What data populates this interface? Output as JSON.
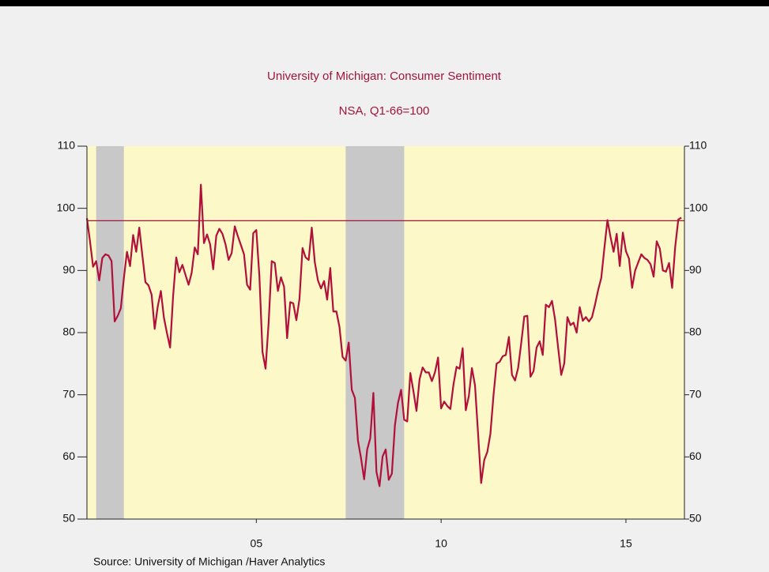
{
  "chart_data": {
    "type": "line",
    "title": "University of Michigan: Consumer Sentiment",
    "subtitle": "NSA, Q1-66=100",
    "source": "Source:  University of Michigan /Haver Analytics",
    "x": [
      2000.917,
      2001.0,
      2001.083,
      2001.167,
      2001.25,
      2001.333,
      2001.417,
      2001.5,
      2001.583,
      2001.667,
      2001.75,
      2001.833,
      2001.917,
      2002.0,
      2002.083,
      2002.167,
      2002.25,
      2002.333,
      2002.417,
      2002.5,
      2002.583,
      2002.667,
      2002.75,
      2002.833,
      2002.917,
      2003.0,
      2003.083,
      2003.167,
      2003.25,
      2003.333,
      2003.417,
      2003.5,
      2003.583,
      2003.667,
      2003.75,
      2003.833,
      2003.917,
      2004.0,
      2004.083,
      2004.167,
      2004.25,
      2004.333,
      2004.417,
      2004.5,
      2004.583,
      2004.667,
      2004.75,
      2004.833,
      2004.917,
      2005.0,
      2005.083,
      2005.167,
      2005.25,
      2005.333,
      2005.417,
      2005.5,
      2005.583,
      2005.667,
      2005.75,
      2005.833,
      2005.917,
      2006.0,
      2006.083,
      2006.167,
      2006.25,
      2006.333,
      2006.417,
      2006.5,
      2006.583,
      2006.667,
      2006.75,
      2006.833,
      2006.917,
      2007.0,
      2007.083,
      2007.167,
      2007.25,
      2007.333,
      2007.417,
      2007.5,
      2007.583,
      2007.667,
      2007.75,
      2007.833,
      2007.917,
      2008.0,
      2008.083,
      2008.167,
      2008.25,
      2008.333,
      2008.417,
      2008.5,
      2008.583,
      2008.667,
      2008.75,
      2008.833,
      2008.917,
      2009.0,
      2009.083,
      2009.167,
      2009.25,
      2009.333,
      2009.417,
      2009.5,
      2009.583,
      2009.667,
      2009.75,
      2009.833,
      2009.917,
      2010.0,
      2010.083,
      2010.167,
      2010.25,
      2010.333,
      2010.417,
      2010.5,
      2010.583,
      2010.667,
      2010.75,
      2010.833,
      2010.917,
      2011.0,
      2011.083,
      2011.167,
      2011.25,
      2011.333,
      2011.417,
      2011.5,
      2011.583,
      2011.667,
      2011.75,
      2011.833,
      2011.917,
      2012.0,
      2012.083,
      2012.167,
      2012.25,
      2012.333,
      2012.417,
      2012.5,
      2012.583,
      2012.667,
      2012.75,
      2012.833,
      2012.917,
      2013.0,
      2013.083,
      2013.167,
      2013.25,
      2013.333,
      2013.417,
      2013.5,
      2013.583,
      2013.667,
      2013.75,
      2013.833,
      2013.917,
      2014.0,
      2014.083,
      2014.167,
      2014.25,
      2014.333,
      2014.417,
      2014.5,
      2014.583,
      2014.667,
      2014.75,
      2014.833,
      2014.917,
      2015.0,
      2015.083,
      2015.167,
      2015.25,
      2015.333,
      2015.417,
      2015.5,
      2015.583,
      2015.667,
      2015.75,
      2015.833,
      2015.917,
      2016.0,
      2016.083,
      2016.167,
      2016.25,
      2016.333,
      2016.417,
      2016.5,
      2016.583,
      2016.667,
      2016.75,
      2016.833,
      2016.917,
      2017.0
    ],
    "series": [
      {
        "color": "#b0103a",
        "values": [
          98.4,
          94.7,
          90.6,
          91.5,
          88.4,
          92.0,
          92.6,
          92.4,
          91.5,
          81.8,
          82.7,
          83.9,
          88.8,
          93.0,
          90.7,
          95.7,
          93.0,
          96.9,
          92.4,
          88.1,
          87.6,
          86.1,
          80.6,
          84.2,
          86.7,
          82.4,
          79.9,
          77.6,
          86.0,
          92.1,
          89.7,
          90.9,
          89.3,
          87.7,
          89.6,
          93.7,
          92.6,
          103.8,
          94.4,
          95.8,
          94.2,
          90.2,
          95.6,
          96.7,
          95.9,
          94.2,
          91.7,
          92.8,
          97.1,
          95.5,
          94.1,
          92.6,
          87.7,
          86.9,
          96.0,
          96.5,
          89.1,
          76.9,
          74.2,
          81.6,
          91.5,
          91.2,
          86.7,
          88.9,
          87.4,
          79.1,
          84.9,
          84.7,
          82.0,
          85.4,
          93.6,
          92.1,
          91.7,
          96.9,
          91.3,
          88.4,
          87.1,
          88.3,
          85.3,
          90.4,
          83.4,
          83.4,
          80.9,
          76.1,
          75.5,
          78.4,
          70.8,
          69.5,
          62.6,
          59.8,
          56.4,
          61.2,
          63.0,
          70.3,
          57.6,
          55.3,
          60.1,
          61.2,
          56.3,
          57.3,
          65.1,
          68.7,
          70.8,
          66.0,
          65.7,
          73.5,
          70.6,
          67.4,
          72.5,
          74.4,
          73.6,
          73.6,
          72.2,
          73.6,
          76.0,
          67.8,
          68.9,
          68.2,
          67.7,
          71.6,
          74.5,
          74.2,
          77.5,
          67.5,
          69.8,
          74.3,
          71.5,
          63.7,
          55.8,
          59.5,
          60.8,
          63.7,
          69.9,
          75.0,
          75.3,
          76.2,
          76.4,
          79.3,
          73.2,
          72.3,
          74.3,
          78.3,
          82.6,
          82.7,
          72.9,
          73.8,
          77.6,
          78.6,
          76.4,
          84.5,
          84.1,
          85.1,
          82.1,
          77.5,
          73.2,
          75.1,
          82.5,
          81.2,
          81.6,
          80.0,
          84.1,
          81.9,
          82.5,
          81.8,
          82.5,
          84.6,
          86.9,
          88.8,
          93.6,
          98.1,
          95.4,
          93.0,
          95.9,
          90.7,
          96.1,
          93.1,
          91.9,
          87.2,
          90.0,
          91.3,
          92.6,
          92.0,
          91.7,
          91.0,
          89.0,
          94.7,
          93.5,
          90.0,
          89.8,
          91.2,
          87.2,
          93.8,
          98.2,
          98.5
        ]
      }
    ],
    "reference_line": {
      "value": 98,
      "color": "#a3143c"
    },
    "recessions": [
      [
        2001.167,
        2001.917
      ],
      [
        2007.917,
        2009.5
      ]
    ],
    "recession_color": "#c8c8c8",
    "plot_background": "#fcf8c8",
    "xlim": [
      2000.917,
      2017.083
    ],
    "xticks": [
      {
        "value": 2005.5,
        "label": "05"
      },
      {
        "value": 2010.5,
        "label": "10"
      },
      {
        "value": 2015.5,
        "label": "15"
      }
    ],
    "ylim": [
      50,
      110
    ],
    "yticks": [
      50,
      60,
      70,
      80,
      90,
      100,
      110
    ],
    "y2lim": [
      50,
      110
    ],
    "y2ticks": [
      50,
      60,
      70,
      80,
      90,
      100,
      110
    ]
  }
}
